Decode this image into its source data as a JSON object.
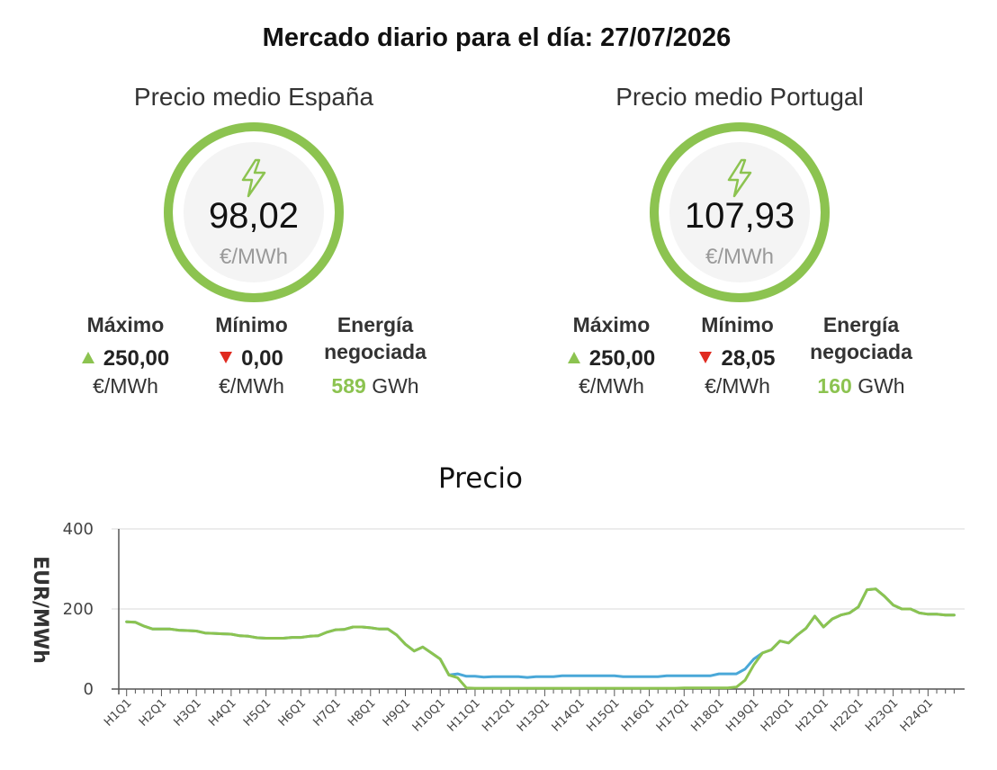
{
  "page_title": "Mercado diario para el día: 27/07/2026",
  "colors": {
    "accent_green": "#8cc350",
    "series_blue": "#4aa8d8",
    "up_marker": "#8cc350",
    "down_marker": "#e02b20"
  },
  "spain": {
    "title": "Precio medio España",
    "icon": "lightning-bolt-icon",
    "average_price": "98,02",
    "unit": "€/MWh",
    "max_label": "Máximo",
    "max_value": "250,00",
    "max_unit": "€/MWh",
    "min_label": "Mínimo",
    "min_value": "0,00",
    "min_unit": "€/MWh",
    "energy_label_1": "Energía",
    "energy_label_2": "negociada",
    "energy_value": "589",
    "energy_unit": "GWh"
  },
  "portugal": {
    "title": "Precio medio Portugal",
    "icon": "lightning-bolt-icon",
    "average_price": "107,93",
    "unit": "€/MWh",
    "max_label": "Máximo",
    "max_value": "250,00",
    "max_unit": "€/MWh",
    "min_label": "Mínimo",
    "min_value": "28,05",
    "min_unit": "€/MWh",
    "energy_label_1": "Energía",
    "energy_label_2": "negociada",
    "energy_value": "160",
    "energy_unit": "GWh"
  },
  "chart_data": {
    "type": "line",
    "title": "Precio",
    "xlabel": "",
    "ylabel": "EUR/MWh",
    "ylim": [
      0,
      400
    ],
    "yticks": [
      0,
      200,
      400
    ],
    "grid": true,
    "legend": "none",
    "categories": [
      "H1Q1",
      "H2Q1",
      "H3Q1",
      "H4Q1",
      "H5Q1",
      "H6Q1",
      "H7Q1",
      "H8Q1",
      "H9Q1",
      "H10Q1",
      "H11Q1",
      "H12Q1",
      "H13Q1",
      "H14Q1",
      "H15Q1",
      "H16Q1",
      "H17Q1",
      "H18Q1",
      "H19Q1",
      "H20Q1",
      "H21Q1",
      "H22Q1",
      "H23Q1",
      "H24Q1"
    ],
    "x": [
      1,
      1.25,
      1.5,
      1.75,
      2,
      2.25,
      2.5,
      2.75,
      3,
      3.25,
      3.5,
      3.75,
      4,
      4.25,
      4.5,
      4.75,
      5,
      5.25,
      5.5,
      5.75,
      6,
      6.25,
      6.5,
      6.75,
      7,
      7.25,
      7.5,
      7.75,
      8,
      8.25,
      8.5,
      8.75,
      9,
      9.25,
      9.5,
      9.75,
      10,
      10.25,
      10.5,
      10.75,
      11,
      11.25,
      11.5,
      11.75,
      12,
      12.25,
      12.5,
      12.75,
      13,
      13.25,
      13.5,
      13.75,
      14,
      14.25,
      14.5,
      14.75,
      15,
      15.25,
      15.5,
      15.75,
      16,
      16.25,
      16.5,
      16.75,
      17,
      17.25,
      17.5,
      17.75,
      18,
      18.25,
      18.5,
      18.75,
      19,
      19.25,
      19.5,
      19.75,
      20,
      20.25,
      20.5,
      20.75,
      21,
      21.25,
      21.5,
      21.75,
      22,
      22.25,
      22.5,
      22.75,
      23,
      23.25,
      23.5,
      23.75,
      24,
      24.25,
      24.5,
      24.75
    ],
    "series": [
      {
        "values": [
          168,
          167,
          157,
          150,
          150,
          150,
          147,
          146,
          145,
          140,
          139,
          138,
          137,
          133,
          132,
          128,
          127,
          127,
          127,
          129,
          129,
          132,
          133,
          142,
          148,
          149,
          155,
          155,
          153,
          150,
          150,
          135,
          112,
          95,
          105,
          90,
          75,
          35,
          38,
          32,
          32,
          30,
          31,
          31,
          31,
          31,
          29,
          31,
          31,
          31,
          33,
          33,
          33,
          33,
          33,
          33,
          33,
          31,
          31,
          31,
          31,
          31,
          33,
          33,
          33,
          33,
          33,
          33,
          38,
          38,
          38,
          50,
          75,
          90,
          98,
          120,
          115,
          135,
          152,
          182,
          155,
          175,
          185,
          190,
          205,
          248,
          250,
          232,
          210,
          200,
          200,
          190,
          187,
          187,
          185,
          185
        ]
      },
      {
        "values": [
          168,
          167,
          157,
          150,
          150,
          150,
          147,
          146,
          145,
          140,
          139,
          138,
          137,
          133,
          132,
          128,
          127,
          127,
          127,
          129,
          129,
          132,
          133,
          142,
          148,
          149,
          155,
          155,
          153,
          150,
          150,
          135,
          112,
          95,
          105,
          90,
          75,
          35,
          28,
          3,
          2,
          2,
          2,
          2,
          2,
          2,
          2,
          2,
          2,
          2,
          2,
          2,
          2,
          2,
          2,
          2,
          2,
          2,
          2,
          2,
          2,
          2,
          2,
          2,
          3,
          3,
          3,
          3,
          3,
          3,
          5,
          22,
          60,
          90,
          98,
          120,
          115,
          135,
          152,
          182,
          155,
          175,
          185,
          190,
          205,
          248,
          250,
          232,
          210,
          200,
          200,
          190,
          187,
          187,
          185,
          185
        ]
      }
    ]
  }
}
